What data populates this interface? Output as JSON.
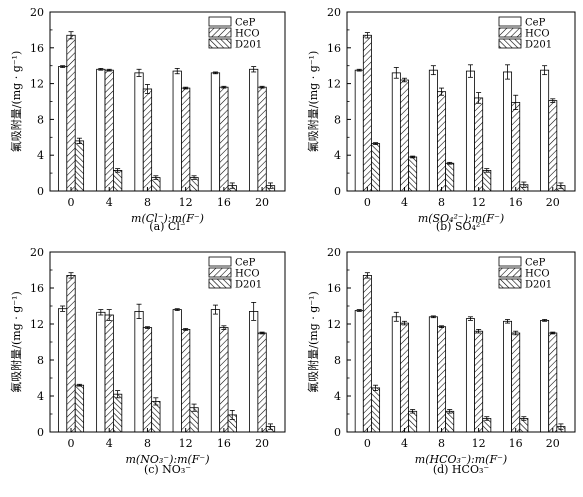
{
  "chart_data": [
    {
      "type": "bar",
      "title": "(a) Cl⁻",
      "ylabel": "氟吸附量/(mg · g⁻¹)",
      "xlabel": "m(Cl⁻):m(F⁻)",
      "ylim": [
        0,
        20
      ],
      "yticks": [
        "0",
        "4",
        "8",
        "12",
        "16",
        "20"
      ],
      "categories": [
        "0",
        "4",
        "8",
        "12",
        "16",
        "20"
      ],
      "legend_position": "top-right",
      "series": [
        {
          "name": "CeP",
          "values": [
            13.9,
            13.6,
            13.2,
            13.4,
            13.2,
            13.6
          ],
          "errors": [
            0.1,
            0.1,
            0.4,
            0.3,
            0.1,
            0.3
          ]
        },
        {
          "name": "HCO",
          "values": [
            17.4,
            13.5,
            11.4,
            11.5,
            11.6,
            11.6
          ],
          "errors": [
            0.4,
            0.1,
            0.5,
            0.1,
            0.1,
            0.1
          ]
        },
        {
          "name": "D201",
          "values": [
            5.6,
            2.3,
            1.5,
            1.5,
            0.6,
            0.6
          ],
          "errors": [
            0.3,
            0.2,
            0.2,
            0.2,
            0.3,
            0.3
          ]
        }
      ]
    },
    {
      "type": "bar",
      "title": "(b) SO₄²⁻",
      "ylabel": "氟吸附量/(mg · g⁻¹)",
      "xlabel": "m(SO₄²⁻):m(F⁻)",
      "ylim": [
        0,
        20
      ],
      "yticks": [
        "0",
        "4",
        "8",
        "12",
        "16",
        "20"
      ],
      "categories": [
        "0",
        "4",
        "8",
        "12",
        "16",
        "20"
      ],
      "legend_position": "top-right",
      "series": [
        {
          "name": "CeP",
          "values": [
            13.5,
            13.2,
            13.5,
            13.4,
            13.3,
            13.5
          ],
          "errors": [
            0.1,
            0.6,
            0.5,
            0.7,
            0.8,
            0.5
          ]
        },
        {
          "name": "HCO",
          "values": [
            17.4,
            12.4,
            11.1,
            10.4,
            9.9,
            10.1
          ],
          "errors": [
            0.3,
            0.2,
            0.4,
            0.6,
            0.8,
            0.2
          ]
        },
        {
          "name": "D201",
          "values": [
            5.3,
            3.8,
            3.1,
            2.3,
            0.7,
            0.6
          ],
          "errors": [
            0.1,
            0.1,
            0.1,
            0.2,
            0.3,
            0.3
          ]
        }
      ]
    },
    {
      "type": "bar",
      "title": "(c) NO₃⁻",
      "ylabel": "氟吸附量/(mg · g⁻¹)",
      "xlabel": "m(NO₃⁻):m(F⁻)",
      "ylim": [
        0,
        20
      ],
      "yticks": [
        "0",
        "4",
        "8",
        "12",
        "16",
        "20"
      ],
      "categories": [
        "0",
        "4",
        "8",
        "12",
        "16",
        "20"
      ],
      "legend_position": "top-right",
      "series": [
        {
          "name": "CeP",
          "values": [
            13.7,
            13.3,
            13.4,
            13.6,
            13.6,
            13.4
          ],
          "errors": [
            0.3,
            0.3,
            0.8,
            0.1,
            0.5,
            1.0
          ]
        },
        {
          "name": "HCO",
          "values": [
            17.4,
            13.0,
            11.6,
            11.4,
            11.6,
            11.0
          ],
          "errors": [
            0.3,
            0.6,
            0.1,
            0.1,
            0.2,
            0.1
          ]
        },
        {
          "name": "D201",
          "values": [
            5.2,
            4.2,
            3.4,
            2.7,
            1.9,
            0.6
          ],
          "errors": [
            0.1,
            0.4,
            0.4,
            0.4,
            0.5,
            0.3
          ]
        }
      ]
    },
    {
      "type": "bar",
      "title": "(d) HCO₃⁻",
      "ylabel": "氟吸附量/(mg · g⁻¹)",
      "xlabel": "m(HCO₃⁻):m(F⁻)",
      "ylim": [
        0,
        20
      ],
      "yticks": [
        "0",
        "4",
        "8",
        "12",
        "16",
        "20"
      ],
      "categories": [
        "0",
        "4",
        "8",
        "12",
        "16",
        "20"
      ],
      "legend_position": "top-right",
      "series": [
        {
          "name": "CeP",
          "values": [
            13.5,
            12.8,
            12.8,
            12.6,
            12.3,
            12.4
          ],
          "errors": [
            0.1,
            0.5,
            0.1,
            0.2,
            0.2,
            0.1
          ]
        },
        {
          "name": "HCO",
          "values": [
            17.4,
            12.1,
            11.7,
            11.2,
            11.0,
            11.0
          ],
          "errors": [
            0.3,
            0.2,
            0.1,
            0.2,
            0.2,
            0.1
          ]
        },
        {
          "name": "D201",
          "values": [
            4.9,
            2.3,
            2.3,
            1.5,
            1.5,
            0.6
          ],
          "errors": [
            0.3,
            0.2,
            0.2,
            0.2,
            0.2,
            0.3
          ]
        }
      ]
    }
  ]
}
